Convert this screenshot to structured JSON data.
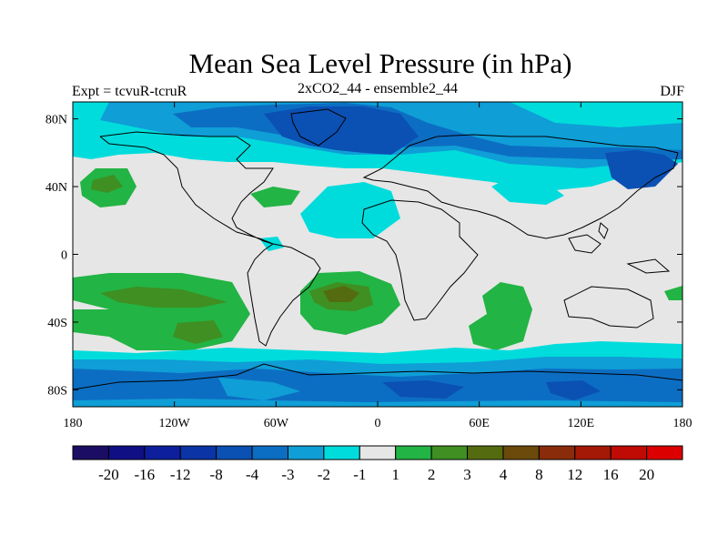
{
  "title": "Mean Sea Level Pressure (in hPa)",
  "left_subtitle": "Expt = tcvuR-tcruR",
  "center_subtitle": "2xCO2_44 - ensemble2_44",
  "right_subtitle": "DJF",
  "lat_ticks": [
    {
      "label": "80N",
      "value": 80
    },
    {
      "label": "40N",
      "value": 40
    },
    {
      "label": "0",
      "value": 0
    },
    {
      "label": "40S",
      "value": -40
    },
    {
      "label": "80S",
      "value": -80
    }
  ],
  "lon_ticks": [
    {
      "label": "180",
      "value": -180
    },
    {
      "label": "120W",
      "value": -120
    },
    {
      "label": "60W",
      "value": -60
    },
    {
      "label": "0",
      "value": 0
    },
    {
      "label": "60E",
      "value": 60
    },
    {
      "label": "120E",
      "value": 120
    },
    {
      "label": "180",
      "value": 180
    }
  ],
  "colorbar": {
    "colors": [
      "#1b0d63",
      "#100f84",
      "#0d1f9c",
      "#0b35a6",
      "#0b50b3",
      "#0c6ec3",
      "#0f9ed6",
      "#00dcdc",
      "#e6e6e6",
      "#22b444",
      "#3f8f22",
      "#556b0f",
      "#6b4a0b",
      "#8a2c0a",
      "#a41806",
      "#c00a04",
      "#dc0000"
    ],
    "labels": [
      "-20",
      "-16",
      "-12",
      "-8",
      "-4",
      "-3",
      "-2",
      "-1",
      "1",
      "2",
      "3",
      "4",
      "8",
      "12",
      "16",
      "20"
    ]
  },
  "legend_colors": {
    "neutral": "#e6e6e6",
    "cyan": "#00dcdc",
    "blue1": "#0f9ed6",
    "blue2": "#0c6ec3",
    "blue3": "#0b50b3",
    "green1": "#22b444",
    "green2": "#3f8f22",
    "green3": "#556b0f"
  }
}
